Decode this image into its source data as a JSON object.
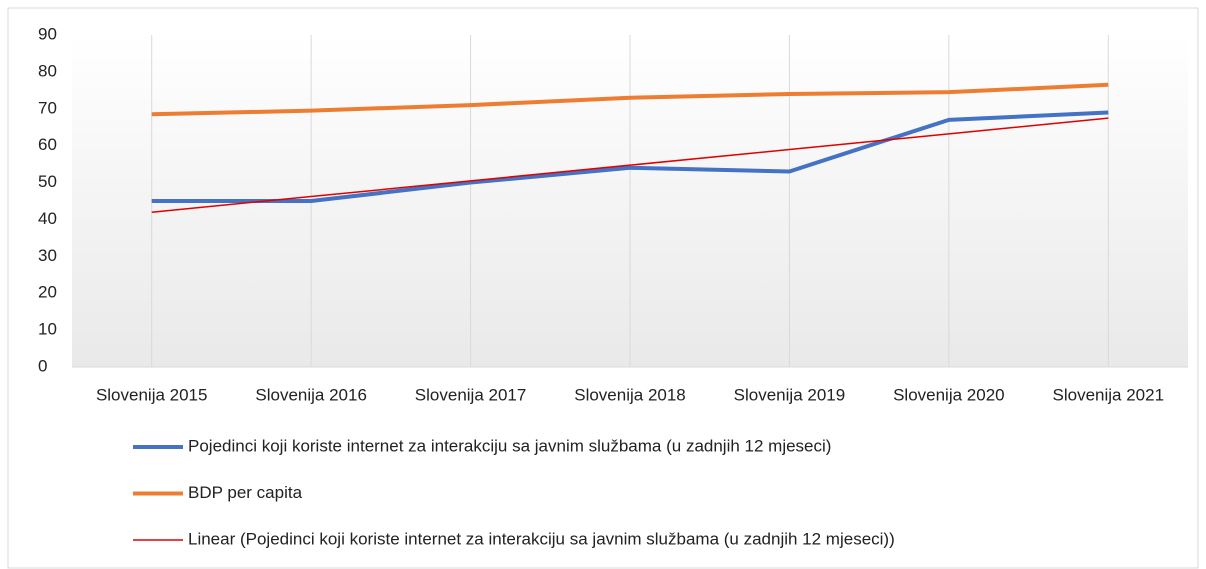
{
  "chart_data": {
    "type": "line",
    "categories": [
      "Slovenija 2015",
      "Slovenija 2016",
      "Slovenija 2017",
      "Slovenija 2018",
      "Slovenija 2019",
      "Slovenija 2020",
      "Slovenija 2021"
    ],
    "series": [
      {
        "name": "Pojedinci koji koriste internet za interakciju sa javnim službama (u zadnjih 12 mjeseci)",
        "color": "#4472c4",
        "width": 4,
        "values": [
          45,
          45,
          50,
          54,
          53,
          67,
          69
        ]
      },
      {
        "name": "BDP per capita",
        "color": "#ed7d31",
        "width": 4,
        "values": [
          68.5,
          69.5,
          71,
          73,
          74,
          74.5,
          76.5
        ]
      },
      {
        "name": "Linear (Pojedinci koji koriste internet za interakciju sa javnim službama (u zadnjih 12 mjeseci))",
        "color": "#e00000",
        "width": 1.5,
        "values": [
          41.96,
          46.21,
          50.46,
          54.71,
          58.96,
          63.21,
          67.46
        ]
      }
    ],
    "ylim": [
      0,
      90
    ],
    "yticks": [
      0,
      10,
      20,
      30,
      40,
      50,
      60,
      70,
      80,
      90
    ],
    "grid": "x",
    "legend": "bottom"
  }
}
